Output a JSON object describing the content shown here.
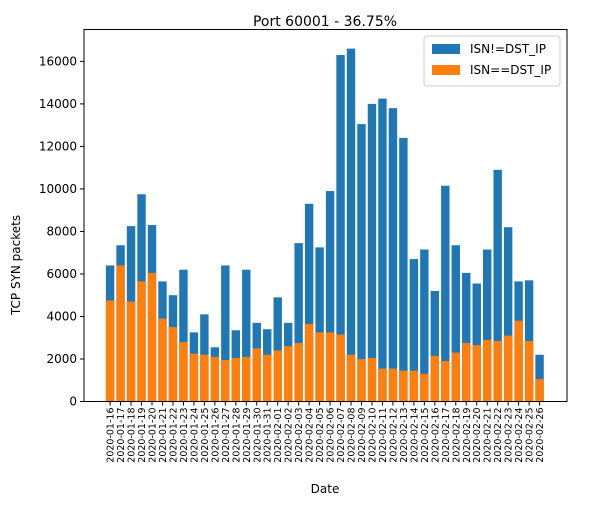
{
  "chart_data": {
    "type": "bar",
    "stacked": "overlay",
    "title": "Port 60001 - 36.75%",
    "xlabel": "Date",
    "ylabel": "TCP SYN packets",
    "ylim": [
      0,
      17500
    ],
    "yticks": [
      0,
      2000,
      4000,
      6000,
      8000,
      10000,
      12000,
      14000,
      16000
    ],
    "grid": false,
    "legend_position": "top-right",
    "categories": [
      "2020-01-16",
      "2020-01-17",
      "2020-01-18",
      "2020-01-19",
      "2020-01-20",
      "2020-01-21",
      "2020-01-22",
      "2020-01-23",
      "2020-01-24",
      "2020-01-25",
      "2020-01-26",
      "2020-01-27",
      "2020-01-28",
      "2020-01-29",
      "2020-01-30",
      "2020-01-31",
      "2020-02-01",
      "2020-02-02",
      "2020-02-03",
      "2020-02-04",
      "2020-02-05",
      "2020-02-06",
      "2020-02-07",
      "2020-02-08",
      "2020-02-09",
      "2020-02-10",
      "2020-02-11",
      "2020-02-12",
      "2020-02-13",
      "2020-02-14",
      "2020-02-15",
      "2020-02-16",
      "2020-02-17",
      "2020-02-18",
      "2020-02-19",
      "2020-02-20",
      "2020-02-21",
      "2020-02-22",
      "2020-02-23",
      "2020-02-24",
      "2020-02-25",
      "2020-02-26"
    ],
    "series": [
      {
        "name": "ISN!=DST_IP",
        "color": "#1f77b4",
        "values": [
          6400,
          7350,
          8250,
          9750,
          8300,
          5650,
          5000,
          6200,
          3250,
          4100,
          2550,
          6400,
          3350,
          6200,
          3700,
          3400,
          4900,
          3700,
          7450,
          9300,
          7250,
          9900,
          16300,
          16600,
          13050,
          14000,
          14250,
          13800,
          12400,
          6700,
          7150,
          5200,
          10150,
          7350,
          6050,
          5550,
          7150,
          10900,
          8200,
          5650,
          5700,
          2200
        ]
      },
      {
        "name": "ISN==DST_IP",
        "color": "#ff7f0e",
        "values": [
          4750,
          6400,
          4700,
          5650,
          6050,
          3900,
          3500,
          2800,
          2250,
          2200,
          2100,
          1950,
          2050,
          2100,
          2500,
          2200,
          2400,
          2600,
          2750,
          3650,
          3250,
          3250,
          3150,
          2200,
          2000,
          2050,
          1550,
          1550,
          1450,
          1450,
          1300,
          2150,
          1900,
          2300,
          2750,
          2650,
          2900,
          2850,
          3100,
          3800,
          2850,
          1050
        ]
      }
    ]
  }
}
